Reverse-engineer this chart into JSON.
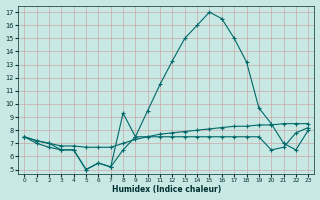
{
  "xlabel": "Humidex (Indice chaleur)",
  "bg_color": "#c8e8e4",
  "grid_color": "#c8a8a8",
  "line_color": "#006868",
  "xlim": [
    -0.5,
    23.5
  ],
  "ylim": [
    4.7,
    17.5
  ],
  "xticks": [
    0,
    1,
    2,
    3,
    4,
    5,
    6,
    7,
    8,
    9,
    10,
    11,
    12,
    13,
    14,
    15,
    16,
    17,
    18,
    19,
    20,
    21,
    22,
    23
  ],
  "yticks": [
    5,
    6,
    7,
    8,
    9,
    10,
    11,
    12,
    13,
    14,
    15,
    16,
    17
  ],
  "line1_x": [
    0,
    1,
    2,
    3,
    4,
    5,
    6,
    7,
    8,
    9,
    10,
    11,
    12,
    13,
    14,
    15,
    16,
    17,
    18,
    19,
    20,
    21,
    22,
    23
  ],
  "line1_y": [
    7.5,
    7.2,
    7.0,
    6.5,
    6.5,
    5.0,
    5.5,
    5.2,
    9.3,
    7.5,
    9.5,
    11.5,
    13.3,
    15.0,
    16.0,
    17.0,
    16.5,
    15.0,
    13.2,
    9.7,
    8.5,
    7.0,
    6.5,
    8.0
  ],
  "line2_x": [
    0,
    1,
    2,
    3,
    4,
    5,
    6,
    7,
    8,
    9,
    10,
    11,
    12,
    13,
    14,
    15,
    16,
    17,
    18,
    19,
    20,
    21,
    22,
    23
  ],
  "line2_y": [
    7.5,
    7.2,
    7.0,
    6.8,
    6.8,
    6.7,
    6.7,
    6.7,
    7.0,
    7.3,
    7.5,
    7.7,
    7.8,
    7.9,
    8.0,
    8.1,
    8.2,
    8.3,
    8.3,
    8.4,
    8.4,
    8.5,
    8.5,
    8.5
  ],
  "line3_x": [
    0,
    1,
    2,
    3,
    4,
    5,
    6,
    7,
    8,
    9,
    10,
    11,
    12,
    13,
    14,
    15,
    16,
    17,
    18,
    19,
    20,
    21,
    22,
    23
  ],
  "line3_y": [
    7.5,
    7.0,
    6.7,
    6.5,
    6.5,
    5.0,
    5.5,
    5.2,
    6.5,
    7.5,
    7.5,
    7.5,
    7.5,
    7.5,
    7.5,
    7.5,
    7.5,
    7.5,
    7.5,
    7.5,
    6.5,
    6.7,
    7.8,
    8.2
  ]
}
